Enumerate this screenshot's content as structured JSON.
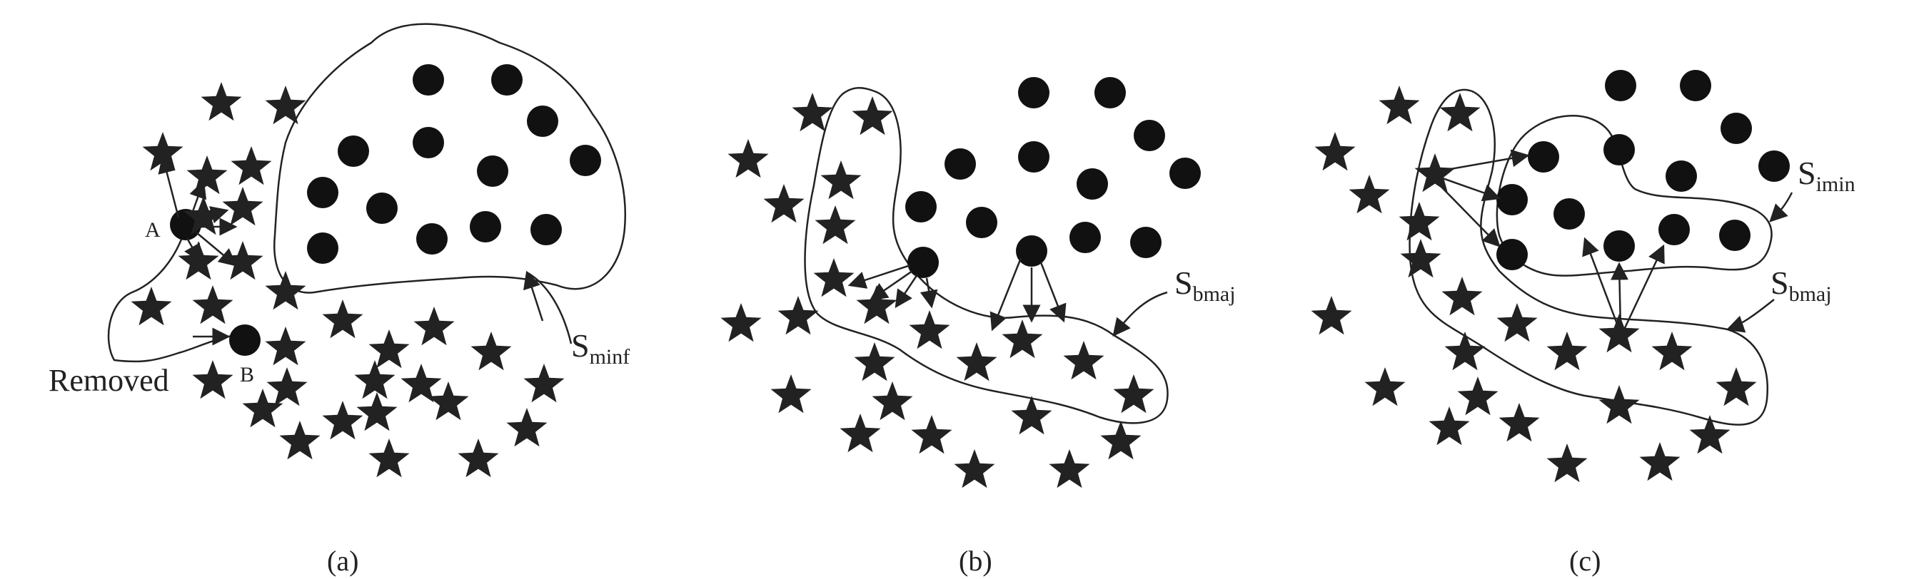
{
  "panels": [
    {
      "caption": "(a)",
      "region_label": "S",
      "region_sub": "minf",
      "point_a": "A",
      "point_b": "B",
      "removed_label": "Removed"
    },
    {
      "caption": "(b)",
      "region_label": "S",
      "region_sub": "bmaj"
    },
    {
      "caption": "(c)",
      "region_label_1": "S",
      "region_sub_1": "imin",
      "region_label_2": "S",
      "region_sub_2": "bmaj"
    }
  ],
  "legend_icons": [
    "star-icon",
    "dot-icon"
  ]
}
